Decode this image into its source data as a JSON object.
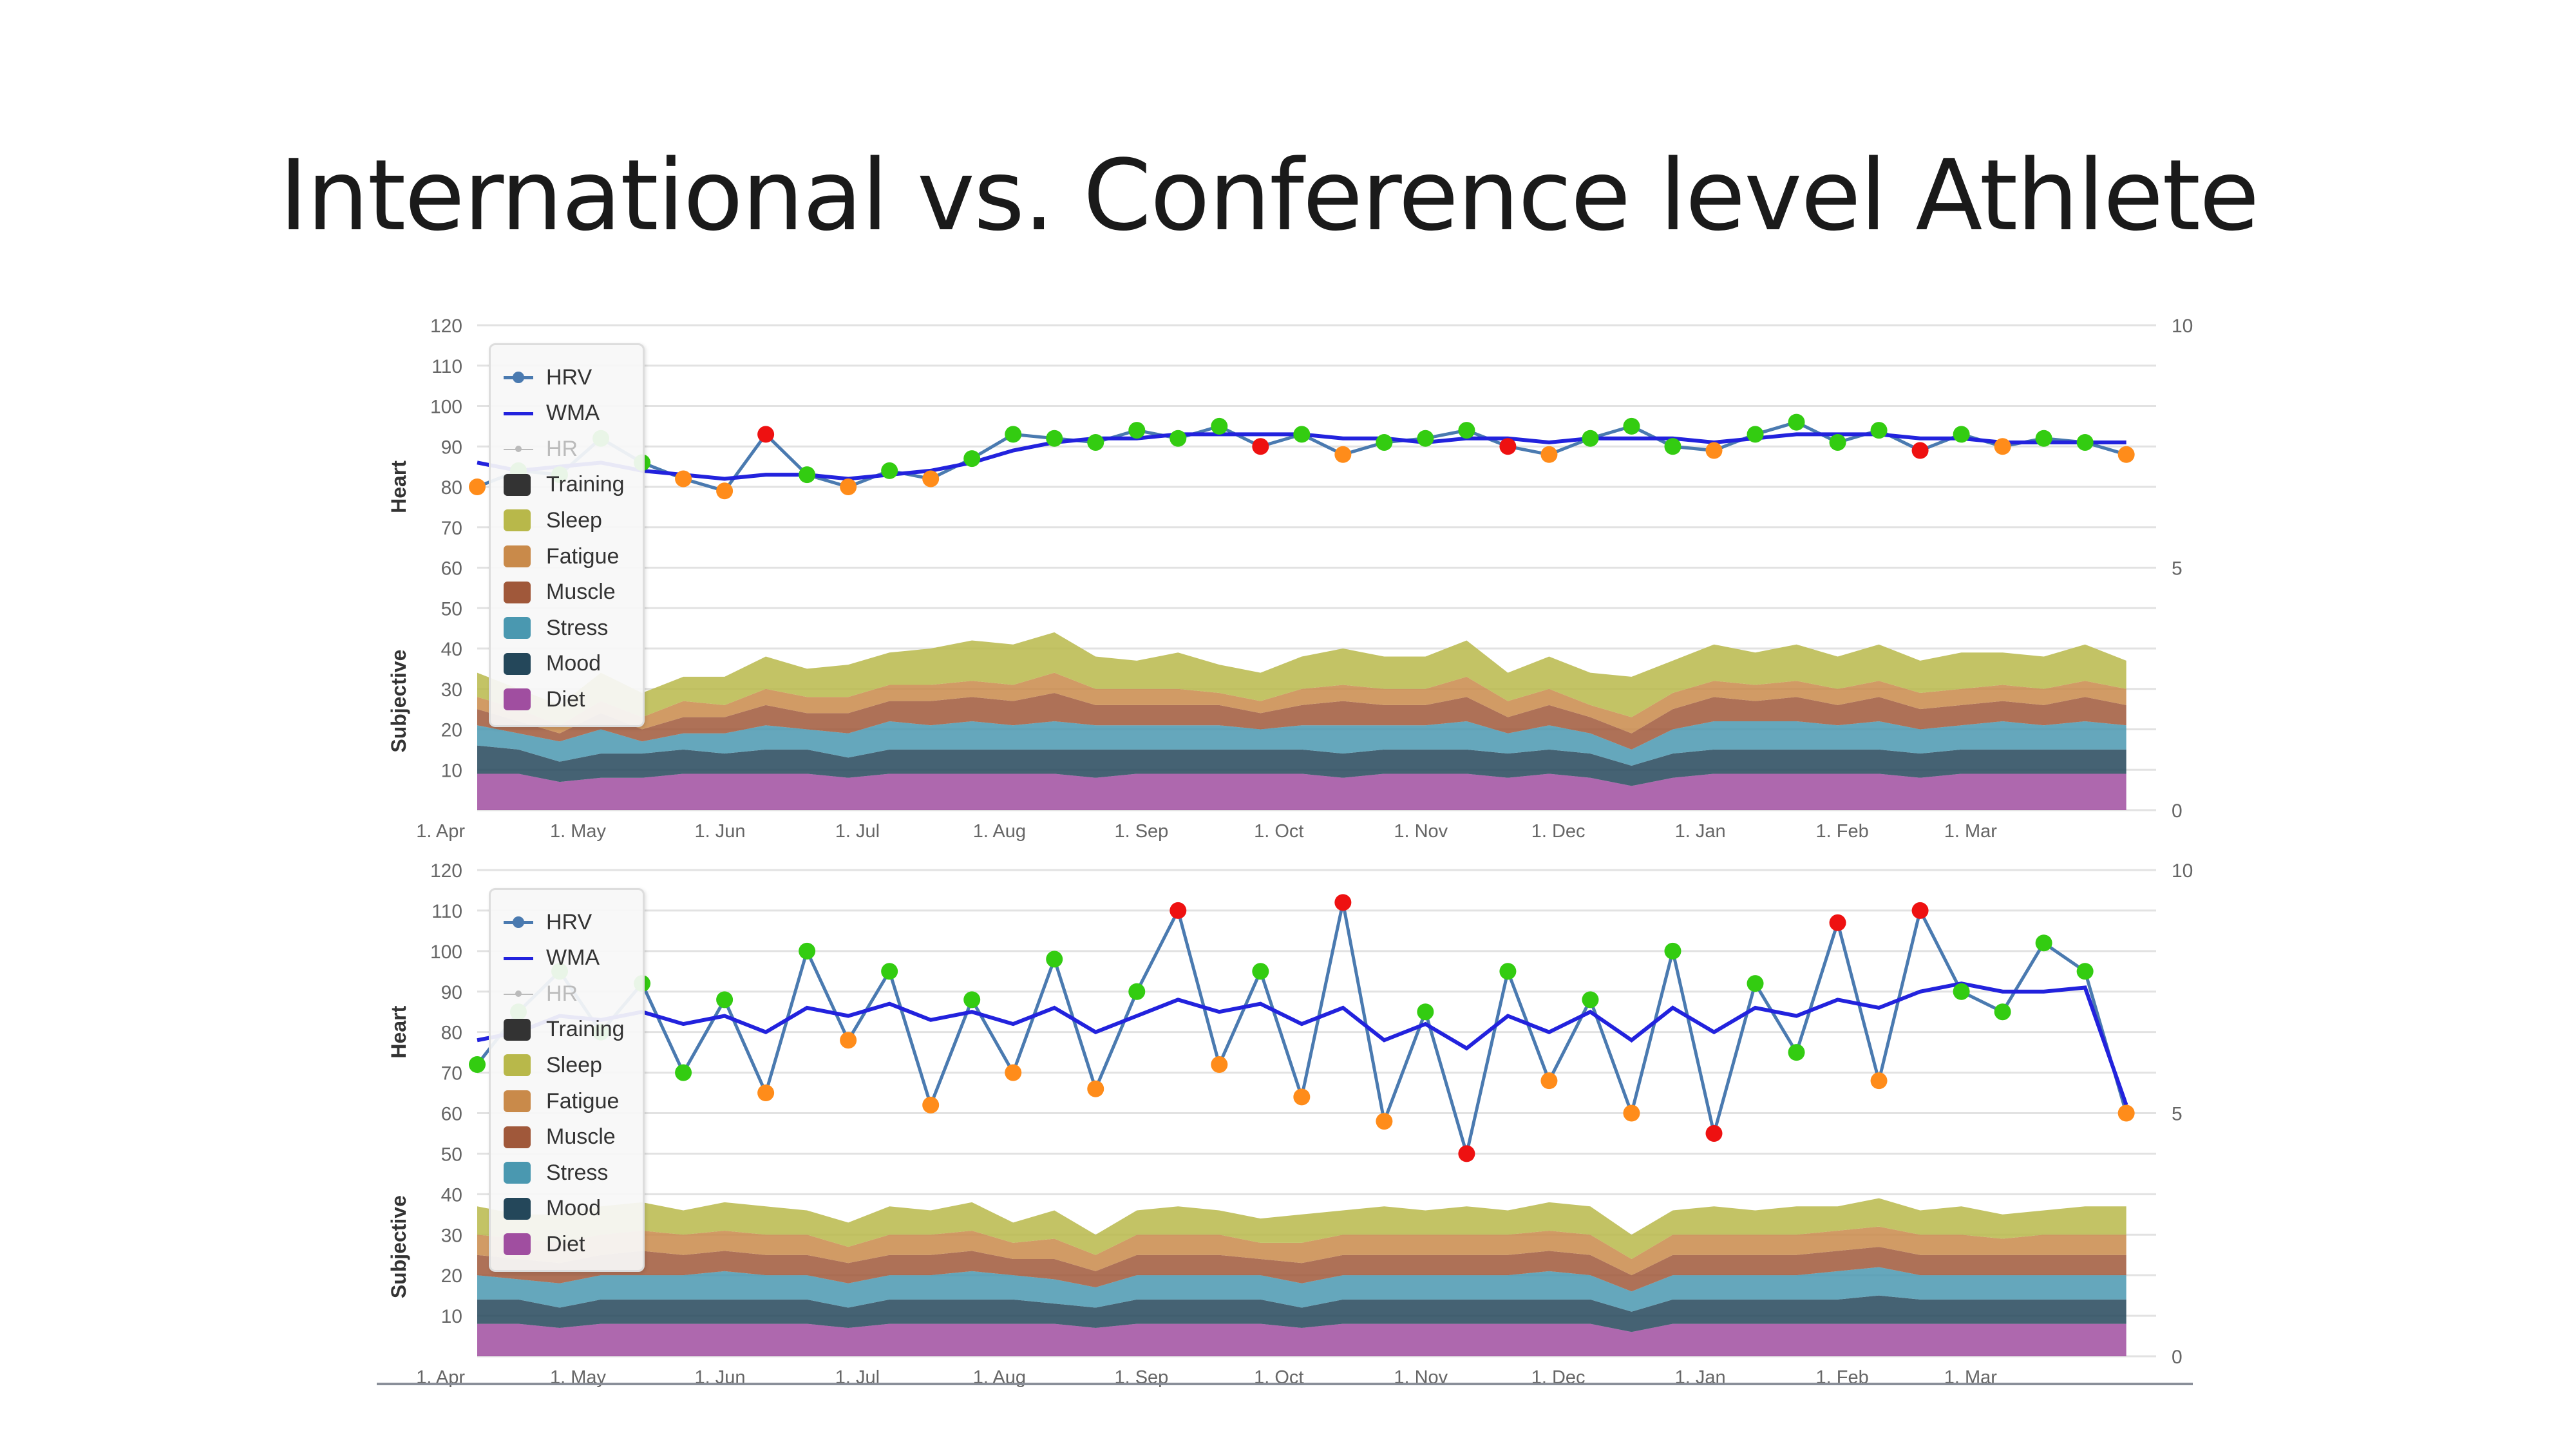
{
  "title": "International vs. Conference level Athlete",
  "legend": [
    {
      "label": "HRV",
      "kind": "line-marker",
      "color": "#4a7ab0"
    },
    {
      "label": "WMA",
      "kind": "line",
      "color": "#2222dd"
    },
    {
      "label": "HR",
      "kind": "line-marker",
      "color": "#bbbbbb",
      "hidden": true
    },
    {
      "label": "Training",
      "kind": "area",
      "color": "#333333"
    },
    {
      "label": "Sleep",
      "kind": "area",
      "color": "#b8b84a"
    },
    {
      "label": "Fatigue",
      "kind": "area",
      "color": "#c98a4a"
    },
    {
      "label": "Muscle",
      "kind": "area",
      "color": "#a0583a"
    },
    {
      "label": "Stress",
      "kind": "area",
      "color": "#4a98b0"
    },
    {
      "label": "Mood",
      "kind": "area",
      "color": "#24475a"
    },
    {
      "label": "Diet",
      "kind": "area",
      "color": "#a04ea0"
    }
  ],
  "point_colors": {
    "normal": "#33cc11",
    "low": "#ff8c1a",
    "alert": "#ee1111"
  },
  "chart_data": [
    {
      "type": "line+stacked-area",
      "ylabel_top": "Heart",
      "ylabel_bottom": "Subjective",
      "left_ticks": [
        "10",
        "20",
        "30",
        "40",
        "50",
        "60",
        "70",
        "80",
        "90",
        "100",
        "110",
        "120"
      ],
      "right_ticks": [
        "0",
        "5",
        "10"
      ],
      "ylim": [
        0,
        120
      ],
      "ylim_right": [
        0,
        10
      ],
      "xlim": [
        "04-09",
        "04-07"
      ],
      "x_ticks": [
        {
          "date": "05-01",
          "label": "1. May"
        },
        {
          "date": "06-01",
          "label": "1. Jun"
        },
        {
          "date": "07-01",
          "label": "1. Jul"
        },
        {
          "date": "08-01",
          "label": "1. Aug"
        },
        {
          "date": "09-01",
          "label": "1. Sep"
        },
        {
          "date": "10-01",
          "label": "1. Oct"
        },
        {
          "date": "11-01",
          "label": "1. Nov"
        },
        {
          "date": "12-01",
          "label": "1. Dec"
        },
        {
          "date": "01-01",
          "label": "1. Jan"
        },
        {
          "date": "02-01",
          "label": "1. Feb"
        },
        {
          "date": "03-01",
          "label": "1. Mar"
        },
        {
          "date": "04-01",
          "label": "1. Apr"
        }
      ],
      "dates": [
        "04-09",
        "04-18",
        "04-27",
        "05-06",
        "05-15",
        "05-24",
        "06-02",
        "06-11",
        "06-20",
        "06-29",
        "07-08",
        "07-17",
        "07-26",
        "08-04",
        "08-13",
        "08-22",
        "08-31",
        "09-09",
        "09-18",
        "09-27",
        "10-06",
        "10-15",
        "10-24",
        "11-02",
        "11-11",
        "11-20",
        "11-29",
        "12-08",
        "12-17",
        "12-26",
        "01-04",
        "01-13",
        "01-22",
        "01-31",
        "02-09",
        "02-18",
        "02-27",
        "03-08",
        "03-17",
        "03-26",
        "04-04"
      ],
      "hrv": [
        80,
        84,
        83,
        92,
        86,
        82,
        79,
        93,
        83,
        80,
        84,
        82,
        87,
        93,
        92,
        91,
        94,
        92,
        95,
        90,
        93,
        88,
        91,
        92,
        94,
        90,
        88,
        92,
        95,
        90,
        89,
        93,
        96,
        91,
        94,
        89,
        93,
        90,
        92,
        91,
        88
      ],
      "hrv_status": [
        "low",
        "normal",
        "normal",
        "normal",
        "normal",
        "low",
        "low",
        "alert",
        "normal",
        "low",
        "normal",
        "low",
        "normal",
        "normal",
        "normal",
        "normal",
        "normal",
        "normal",
        "normal",
        "alert",
        "normal",
        "low",
        "normal",
        "normal",
        "normal",
        "alert",
        "low",
        "normal",
        "normal",
        "normal",
        "low",
        "normal",
        "normal",
        "normal",
        "normal",
        "alert",
        "normal",
        "low",
        "normal",
        "normal",
        "low"
      ],
      "wma": [
        86,
        84,
        85,
        86,
        84,
        83,
        82,
        83,
        83,
        82,
        83,
        84,
        86,
        89,
        91,
        92,
        92,
        93,
        93,
        93,
        93,
        92,
        92,
        91,
        92,
        92,
        91,
        92,
        92,
        92,
        91,
        92,
        93,
        93,
        93,
        92,
        92,
        91,
        91,
        91,
        91
      ],
      "stack": {
        "Diet": [
          9,
          9,
          7,
          8,
          8,
          9,
          9,
          9,
          9,
          8,
          9,
          9,
          9,
          9,
          9,
          8,
          9,
          9,
          9,
          9,
          9,
          8,
          9,
          9,
          9,
          8,
          9,
          8,
          6,
          8,
          9,
          9,
          9,
          9,
          9,
          8,
          9,
          9,
          9,
          9,
          9
        ],
        "Mood": [
          7,
          6,
          5,
          6,
          6,
          6,
          5,
          6,
          6,
          5,
          6,
          6,
          6,
          6,
          6,
          7,
          6,
          6,
          6,
          6,
          6,
          6,
          6,
          6,
          6,
          6,
          6,
          6,
          5,
          6,
          6,
          6,
          6,
          6,
          6,
          6,
          6,
          6,
          6,
          6,
          6
        ],
        "Stress": [
          5,
          4,
          5,
          6,
          3,
          4,
          5,
          6,
          5,
          6,
          7,
          6,
          7,
          6,
          7,
          6,
          6,
          6,
          6,
          5,
          6,
          7,
          6,
          6,
          7,
          5,
          6,
          5,
          4,
          6,
          7,
          7,
          7,
          6,
          7,
          6,
          6,
          7,
          6,
          7,
          6
        ],
        "Muscle": [
          4,
          3,
          2,
          4,
          3,
          4,
          4,
          5,
          4,
          5,
          5,
          6,
          6,
          6,
          7,
          5,
          5,
          5,
          5,
          4,
          5,
          6,
          5,
          5,
          6,
          4,
          5,
          4,
          4,
          5,
          6,
          5,
          6,
          5,
          6,
          5,
          5,
          5,
          5,
          6,
          5
        ],
        "Fatigue": [
          3,
          3,
          2,
          3,
          3,
          4,
          3,
          4,
          4,
          4,
          4,
          4,
          4,
          4,
          5,
          4,
          4,
          4,
          3,
          3,
          4,
          4,
          4,
          4,
          5,
          4,
          4,
          3,
          4,
          4,
          4,
          4,
          4,
          4,
          4,
          4,
          4,
          4,
          4,
          4,
          4
        ],
        "Sleep": [
          6,
          5,
          5,
          7,
          6,
          6,
          7,
          8,
          7,
          8,
          8,
          9,
          10,
          10,
          10,
          8,
          7,
          9,
          7,
          7,
          8,
          9,
          8,
          8,
          9,
          7,
          8,
          8,
          10,
          8,
          9,
          8,
          9,
          8,
          9,
          8,
          9,
          8,
          8,
          9,
          7
        ]
      }
    },
    {
      "type": "line+stacked-area",
      "ylabel_top": "Heart",
      "ylabel_bottom": "Subjective",
      "left_ticks": [
        "10",
        "20",
        "30",
        "40",
        "50",
        "60",
        "70",
        "80",
        "90",
        "100",
        "110",
        "120"
      ],
      "right_ticks": [
        "0",
        "5",
        "10"
      ],
      "ylim": [
        0,
        120
      ],
      "ylim_right": [
        0,
        10
      ],
      "xlim": [
        "04-09",
        "04-07"
      ],
      "x_ticks": [
        {
          "date": "05-01",
          "label": "1. May"
        },
        {
          "date": "06-01",
          "label": "1. Jun"
        },
        {
          "date": "07-01",
          "label": "1. Jul"
        },
        {
          "date": "08-01",
          "label": "1. Aug"
        },
        {
          "date": "09-01",
          "label": "1. Sep"
        },
        {
          "date": "10-01",
          "label": "1. Oct"
        },
        {
          "date": "11-01",
          "label": "1. Nov"
        },
        {
          "date": "12-01",
          "label": "1. Dec"
        },
        {
          "date": "01-01",
          "label": "1. Jan"
        },
        {
          "date": "02-01",
          "label": "1. Feb"
        },
        {
          "date": "03-01",
          "label": "1. Mar"
        },
        {
          "date": "04-01",
          "label": "1. Apr"
        }
      ],
      "dates": [
        "04-09",
        "04-18",
        "04-27",
        "05-06",
        "05-15",
        "05-24",
        "06-02",
        "06-11",
        "06-20",
        "06-29",
        "07-08",
        "07-17",
        "07-26",
        "08-04",
        "08-13",
        "08-22",
        "08-31",
        "09-09",
        "09-18",
        "09-27",
        "10-06",
        "10-15",
        "10-24",
        "11-02",
        "11-11",
        "11-20",
        "11-29",
        "12-08",
        "12-17",
        "12-26",
        "01-04",
        "01-13",
        "01-22",
        "01-31",
        "02-09",
        "02-18",
        "02-27",
        "03-08",
        "03-17",
        "03-26",
        "04-04"
      ],
      "hrv": [
        72,
        85,
        95,
        80,
        92,
        70,
        88,
        65,
        100,
        78,
        95,
        62,
        88,
        70,
        98,
        66,
        90,
        110,
        72,
        95,
        64,
        112,
        58,
        85,
        50,
        95,
        68,
        88,
        60,
        100,
        55,
        92,
        75,
        107,
        68,
        110,
        90,
        85,
        102,
        95,
        60
      ],
      "hrv_status": [
        "normal",
        "normal",
        "normal",
        "normal",
        "normal",
        "normal",
        "normal",
        "low",
        "normal",
        "low",
        "normal",
        "low",
        "normal",
        "low",
        "normal",
        "low",
        "normal",
        "alert",
        "low",
        "normal",
        "low",
        "alert",
        "low",
        "normal",
        "alert",
        "normal",
        "low",
        "normal",
        "low",
        "normal",
        "alert",
        "normal",
        "normal",
        "alert",
        "low",
        "alert",
        "normal",
        "normal",
        "normal",
        "normal",
        "low"
      ],
      "wma": [
        78,
        80,
        84,
        83,
        85,
        82,
        84,
        80,
        86,
        84,
        87,
        83,
        85,
        82,
        86,
        80,
        84,
        88,
        85,
        87,
        82,
        86,
        78,
        82,
        76,
        84,
        80,
        85,
        78,
        86,
        80,
        86,
        84,
        88,
        86,
        90,
        92,
        90,
        90,
        91,
        62
      ],
      "stack": {
        "Diet": [
          8,
          8,
          7,
          8,
          8,
          8,
          8,
          8,
          8,
          7,
          8,
          8,
          8,
          8,
          8,
          7,
          8,
          8,
          8,
          8,
          7,
          8,
          8,
          8,
          8,
          8,
          8,
          8,
          6,
          8,
          8,
          8,
          8,
          8,
          8,
          8,
          8,
          8,
          8,
          8,
          8
        ],
        "Mood": [
          6,
          6,
          5,
          6,
          6,
          6,
          6,
          6,
          6,
          5,
          6,
          6,
          6,
          6,
          5,
          5,
          6,
          6,
          6,
          6,
          5,
          6,
          6,
          6,
          6,
          6,
          6,
          6,
          5,
          6,
          6,
          6,
          6,
          6,
          7,
          6,
          6,
          6,
          6,
          6,
          6
        ],
        "Stress": [
          6,
          5,
          6,
          6,
          6,
          6,
          7,
          6,
          6,
          6,
          6,
          6,
          7,
          6,
          6,
          5,
          6,
          6,
          6,
          6,
          6,
          6,
          6,
          6,
          6,
          6,
          7,
          6,
          5,
          6,
          6,
          6,
          6,
          7,
          7,
          6,
          6,
          6,
          6,
          6,
          6
        ],
        "Muscle": [
          5,
          5,
          5,
          5,
          6,
          5,
          5,
          5,
          5,
          5,
          5,
          5,
          5,
          4,
          5,
          4,
          5,
          5,
          5,
          4,
          5,
          5,
          5,
          5,
          5,
          5,
          5,
          5,
          4,
          5,
          5,
          5,
          5,
          5,
          5,
          5,
          5,
          5,
          5,
          5,
          5
        ],
        "Fatigue": [
          5,
          5,
          5,
          5,
          5,
          5,
          5,
          5,
          5,
          4,
          5,
          5,
          5,
          4,
          5,
          4,
          5,
          5,
          5,
          4,
          5,
          5,
          5,
          5,
          5,
          5,
          5,
          5,
          4,
          5,
          5,
          5,
          5,
          5,
          5,
          5,
          5,
          4,
          5,
          5,
          5
        ],
        "Sleep": [
          7,
          6,
          7,
          7,
          7,
          6,
          7,
          7,
          6,
          6,
          7,
          6,
          7,
          5,
          7,
          5,
          6,
          7,
          6,
          6,
          7,
          6,
          7,
          6,
          7,
          6,
          7,
          7,
          6,
          6,
          7,
          6,
          7,
          6,
          7,
          6,
          7,
          6,
          6,
          7,
          7
        ]
      }
    }
  ]
}
